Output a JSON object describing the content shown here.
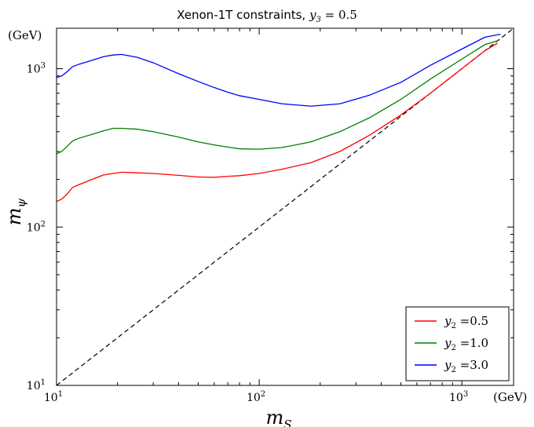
{
  "chart_data": {
    "type": "line",
    "title": {
      "text": "Xenon-1T constraints, ",
      "math_var": "y",
      "math_sub": "3",
      "math_rest": " = 0.5"
    },
    "xlabel": {
      "var": "m",
      "sub": "S"
    },
    "ylabel": {
      "var": "m",
      "sub": "ψ"
    },
    "x_unit": "(GeV)",
    "y_unit": "(GeV)",
    "x_scale": "log",
    "y_scale": "log",
    "xlim": [
      10,
      1800
    ],
    "ylim": [
      10,
      1800
    ],
    "x_ticks": [
      {
        "base": "10",
        "exp": "1",
        "value": 10
      },
      {
        "base": "10",
        "exp": "2",
        "value": 100
      },
      {
        "base": "10",
        "exp": "3",
        "value": 1000
      }
    ],
    "y_ticks": [
      {
        "base": "10",
        "exp": "1",
        "value": 10
      },
      {
        "base": "10",
        "exp": "2",
        "value": 100
      },
      {
        "base": "10",
        "exp": "3",
        "value": 1000
      }
    ],
    "grid": false,
    "legend_position": "bottom-right",
    "diagonal": {
      "style": "dashed",
      "color": "#000000",
      "x": [
        10,
        1800
      ],
      "y": [
        10,
        1800
      ]
    },
    "series": [
      {
        "name": "y₂ =0.5",
        "legend_var": "y",
        "legend_sub": "2",
        "legend_value": " =0.5",
        "color": "#ff0000",
        "x": [
          10,
          10.6,
          11.2,
          12,
          13,
          15,
          17,
          19,
          21,
          25,
          30,
          40,
          50,
          60,
          70,
          80,
          100,
          130,
          180,
          250,
          350,
          500,
          700,
          1000,
          1300,
          1500
        ],
        "y": [
          145,
          150,
          160,
          178,
          186,
          200,
          213,
          218,
          222,
          220,
          218,
          212,
          207,
          206,
          209,
          211,
          218,
          232,
          255,
          300,
          380,
          510,
          700,
          1000,
          1300,
          1450
        ]
      },
      {
        "name": "y₂ =1.0",
        "legend_var": "y",
        "legend_sub": "2",
        "legend_value": " =1.0",
        "color": "#008000",
        "x": [
          10,
          10.6,
          11.2,
          12,
          13,
          15,
          17,
          19,
          21,
          25,
          30,
          40,
          50,
          60,
          70,
          80,
          100,
          130,
          180,
          250,
          350,
          500,
          700,
          1000,
          1300,
          1500
        ],
        "y": [
          290,
          300,
          320,
          350,
          365,
          385,
          405,
          420,
          420,
          415,
          400,
          370,
          345,
          330,
          320,
          312,
          310,
          318,
          345,
          400,
          490,
          640,
          860,
          1150,
          1420,
          1500
        ]
      },
      {
        "name": "y₂ =3.0",
        "legend_var": "y",
        "legend_sub": "2",
        "legend_value": " =3.0",
        "color": "#0000ff",
        "x": [
          10,
          10.6,
          11.2,
          12,
          13,
          15,
          17,
          19,
          21,
          25,
          30,
          40,
          50,
          60,
          70,
          80,
          100,
          130,
          180,
          250,
          350,
          500,
          700,
          1000,
          1300,
          1550
        ],
        "y": [
          880,
          900,
          950,
          1030,
          1070,
          1130,
          1190,
          1220,
          1230,
          1180,
          1090,
          930,
          830,
          760,
          710,
          675,
          640,
          600,
          580,
          600,
          680,
          820,
          1050,
          1330,
          1580,
          1650
        ]
      }
    ]
  }
}
